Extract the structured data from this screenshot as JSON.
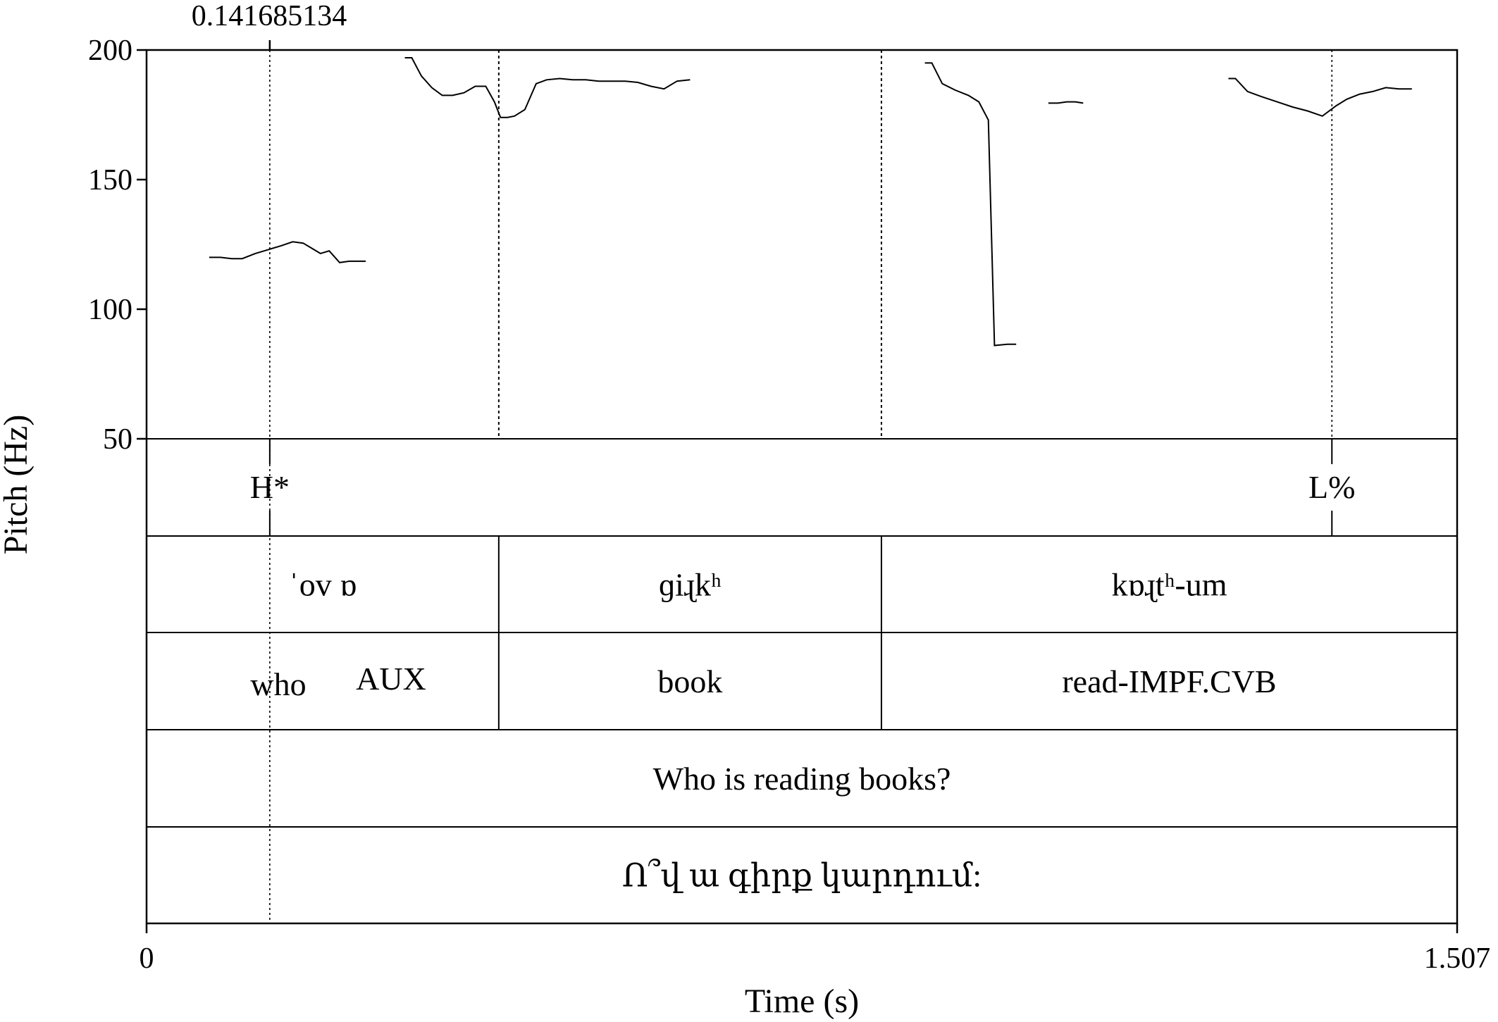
{
  "chart_data": {
    "type": "line",
    "title": "",
    "xlabel": "Time (s)",
    "ylabel": "Pitch (Hz)",
    "xlim": [
      0,
      1.507
    ],
    "ylim": [
      50,
      200
    ],
    "x_tick_labels": [
      "0",
      "1.507"
    ],
    "y_ticks": [
      200,
      150,
      100,
      50
    ],
    "y_tick_labels": [
      "200",
      "150",
      "100",
      "50"
    ],
    "cursor": {
      "time": 0.141685134,
      "label": "0.141685134"
    },
    "boundaries": [
      0.405,
      0.845
    ],
    "tone_marks": [
      {
        "time": 0.141685134,
        "label": "H*"
      },
      {
        "time": 1.363,
        "label": "L%"
      }
    ],
    "tiers": [
      {
        "name": "transcription",
        "intervals": [
          {
            "start": 0,
            "end": 0.405,
            "label": "ˈov ɒ"
          },
          {
            "start": 0.405,
            "end": 0.845,
            "label": "ɡiɻkʰ"
          },
          {
            "start": 0.845,
            "end": 1.507,
            "label": "kɒɻtʰ-um"
          }
        ]
      },
      {
        "name": "gloss",
        "intervals": [
          {
            "start": 0,
            "end": 0.405,
            "label": "who",
            "label2": "AUX"
          },
          {
            "start": 0.405,
            "end": 0.845,
            "label": "book"
          },
          {
            "start": 0.845,
            "end": 1.507,
            "label": "read-IMPF.CVB"
          }
        ]
      },
      {
        "name": "translation",
        "intervals": [
          {
            "start": 0,
            "end": 1.507,
            "label": "Who is reading books?"
          }
        ]
      },
      {
        "name": "armenian",
        "intervals": [
          {
            "start": 0,
            "end": 1.507,
            "label": "Ո՞վ ա գիրք կարդում:"
          }
        ]
      }
    ],
    "series": [
      {
        "x": [
          0.072,
          0.085,
          0.098,
          0.11,
          0.125,
          0.14,
          0.155,
          0.168,
          0.18,
          0.19,
          0.2,
          0.21,
          0.222,
          0.233,
          0.243,
          0.252
        ],
        "values": [
          120,
          120,
          119.5,
          119.5,
          121.5,
          123,
          124.5,
          126,
          125.5,
          123.5,
          121.5,
          122.5,
          118,
          118.5,
          118.5,
          118.5
        ]
      },
      {
        "x": [
          0.297,
          0.305,
          0.316,
          0.328,
          0.34,
          0.352,
          0.365,
          0.378,
          0.39,
          0.4,
          0.407,
          0.415,
          0.423,
          0.435,
          0.448,
          0.46,
          0.475,
          0.49,
          0.505,
          0.52,
          0.535,
          0.55,
          0.565,
          0.58,
          0.595,
          0.61,
          0.625
        ],
        "values": [
          197,
          197,
          190,
          185.5,
          182.5,
          182.5,
          183.5,
          186,
          186,
          180,
          174,
          174,
          174.5,
          177,
          187,
          188.5,
          189,
          188.5,
          188.5,
          188,
          188,
          188,
          187.5,
          186,
          185,
          188,
          188.5
        ]
      },
      {
        "x": [
          0.895,
          0.903,
          0.915,
          0.93,
          0.945,
          0.957,
          0.968,
          0.975,
          0.99,
          1.0
        ],
        "values": [
          195,
          195,
          187,
          184.5,
          182.5,
          180,
          173,
          86,
          86.5,
          86.5
        ]
      },
      {
        "x": [
          1.037,
          1.048,
          1.058,
          1.068,
          1.077
        ],
        "values": [
          179.5,
          179.5,
          180,
          180,
          179.5
        ]
      },
      {
        "x": [
          1.244,
          1.252,
          1.266,
          1.282,
          1.3,
          1.318,
          1.335,
          1.352,
          1.368,
          1.38,
          1.395,
          1.41,
          1.425,
          1.44,
          1.455
        ],
        "values": [
          189,
          189,
          184,
          182,
          180,
          178,
          176.5,
          174.5,
          178.5,
          181,
          183,
          184,
          185.5,
          185,
          185
        ]
      }
    ]
  }
}
